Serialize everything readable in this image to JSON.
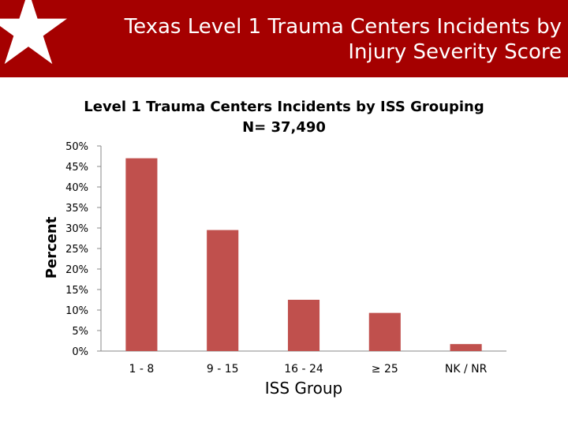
{
  "slide": {
    "title_line1": "Texas Level 1 Trauma Centers Incidents by",
    "title_line2": "Injury Severity Score",
    "accent_color": "#a50000",
    "logo_icon": "star-icon"
  },
  "chart_data": {
    "type": "bar",
    "title": "Level 1 Trauma Centers Incidents by ISS Grouping",
    "subtitle": "N= 37,490",
    "xlabel": "ISS Group",
    "ylabel": "Percent",
    "categories": [
      "1 - 8",
      "9 - 15",
      "16 - 24",
      "≥ 25",
      "NK / NR"
    ],
    "values": [
      47,
      29.5,
      12.5,
      9.3,
      1.7
    ],
    "ylim": [
      0,
      50
    ],
    "yticks": [
      "0%",
      "5%",
      "10%",
      "15%",
      "20%",
      "25%",
      "30%",
      "35%",
      "40%",
      "45%",
      "50%"
    ],
    "bar_color": "#c0504d",
    "grid": false,
    "legend": "none"
  }
}
